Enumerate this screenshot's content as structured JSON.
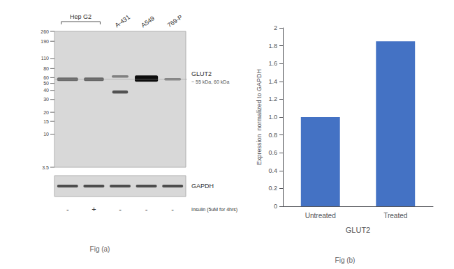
{
  "chart_data": {
    "type": "bar",
    "categories": [
      "Untreated",
      "Treated"
    ],
    "values": [
      1.0,
      1.85
    ],
    "color": "#4472C4",
    "xlabel": "GLUT2",
    "ylabel": "Expression  normalized to GAPDH",
    "ylim": [
      0,
      2.0
    ],
    "yticks": [
      0,
      0.2,
      0.4,
      0.6,
      0.8,
      {
        "value": 1.0,
        "label": "1.0"
      },
      1.2,
      1.4,
      1.6,
      1.8,
      2.0
    ],
    "grid": false,
    "annotations": [
      "Hep G2",
      "A-431",
      "A549",
      "769-P",
      "260",
      "190",
      "110",
      "80",
      "60",
      "50",
      "40",
      "30",
      "20",
      "15",
      "10",
      "3.5",
      "GLUT2",
      "~ 55 kDa, 60 kDa",
      "GAPDH",
      "-",
      "+",
      "-",
      "-",
      "-",
      "Insulin (5uM for 4hrs)",
      "Fig (a)",
      "Fig (b)"
    ]
  }
}
